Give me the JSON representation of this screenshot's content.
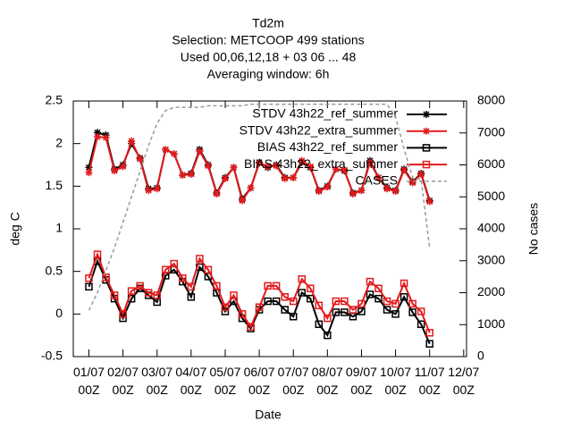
{
  "chart_data": {
    "type": "line",
    "title": [
      "Td2m",
      "Selection: METCOOP    499 stations",
      "Used  00,06,12,18  + 03 06 ... 48",
      "Averaging window:  6h"
    ],
    "xlabel": "Date",
    "ylabel": "deg C",
    "y2label": "No cases",
    "x": [
      0,
      6,
      12,
      18,
      24,
      30,
      36,
      42,
      48,
      54,
      60,
      66,
      72,
      78,
      84,
      90,
      96,
      102,
      108,
      114,
      120,
      126,
      132,
      138,
      144,
      150,
      156,
      162,
      168,
      174,
      180,
      186,
      192,
      198,
      204,
      210,
      216,
      222,
      228,
      234,
      240
    ],
    "xlim": [
      -11,
      266
    ],
    "xticks": [
      {
        "value": 0,
        "label": "01/07 00Z"
      },
      {
        "value": 24,
        "label": "02/07 00Z"
      },
      {
        "value": 48,
        "label": "03/07 00Z"
      },
      {
        "value": 72,
        "label": "04/07 00Z"
      },
      {
        "value": 96,
        "label": "05/07 00Z"
      },
      {
        "value": 120,
        "label": "06/07 00Z"
      },
      {
        "value": 144,
        "label": "07/07 00Z"
      },
      {
        "value": 168,
        "label": "08/07 00Z"
      },
      {
        "value": 192,
        "label": "09/07 00Z"
      },
      {
        "value": 216,
        "label": "10/07 00Z"
      },
      {
        "value": 240,
        "label": "11/07 00Z"
      },
      {
        "value": 264,
        "label": "12/07 00Z"
      }
    ],
    "ylim": [
      -0.5,
      2.5
    ],
    "yticks": [
      -0.5,
      0,
      0.5,
      1,
      1.5,
      2,
      2.5
    ],
    "y2lim": [
      0,
      8000
    ],
    "y2ticks": [
      0,
      1000,
      2000,
      3000,
      4000,
      5000,
      6000,
      7000,
      8000
    ],
    "legend": "upper right",
    "series": [
      {
        "name": "STDV 43h22_ref_summer",
        "color": "#000000",
        "marker": "star",
        "values": [
          1.72,
          2.13,
          2.1,
          1.7,
          1.75,
          2.0,
          1.83,
          1.47,
          1.48,
          1.93,
          1.88,
          1.63,
          1.65,
          1.93,
          1.75,
          1.42,
          1.6,
          1.72,
          1.35,
          1.48,
          1.78,
          1.72,
          1.75,
          1.6,
          1.6,
          1.78,
          1.72,
          1.45,
          1.5,
          1.7,
          1.68,
          1.42,
          1.45,
          1.8,
          1.6,
          1.48,
          1.45,
          1.7,
          1.55,
          1.65,
          1.33
        ]
      },
      {
        "name": "STDV 43h22_extra_summer",
        "color": "#e31a1c",
        "marker": "star",
        "values": [
          1.66,
          2.08,
          2.07,
          1.68,
          1.73,
          2.03,
          1.82,
          1.45,
          1.47,
          1.93,
          1.88,
          1.63,
          1.64,
          1.91,
          1.74,
          1.41,
          1.59,
          1.72,
          1.33,
          1.48,
          1.77,
          1.73,
          1.74,
          1.59,
          1.6,
          1.8,
          1.73,
          1.44,
          1.49,
          1.7,
          1.69,
          1.41,
          1.45,
          1.78,
          1.6,
          1.47,
          1.44,
          1.69,
          1.54,
          1.64,
          1.32
        ]
      },
      {
        "name": "BIAS 43h22_ref_summer",
        "color": "#000000",
        "marker": "square",
        "values": [
          0.32,
          0.62,
          0.4,
          0.18,
          -0.05,
          0.18,
          0.3,
          0.22,
          0.14,
          0.45,
          0.52,
          0.38,
          0.2,
          0.55,
          0.44,
          0.25,
          0.03,
          0.15,
          -0.05,
          -0.17,
          0.05,
          0.15,
          0.15,
          0.05,
          -0.03,
          0.25,
          0.18,
          -0.12,
          -0.25,
          0.02,
          0.02,
          -0.03,
          0.03,
          0.23,
          0.18,
          0.05,
          0.0,
          0.2,
          0.02,
          -0.12,
          -0.35
        ]
      },
      {
        "name": "BIAS 43h22_extra_summer",
        "color": "#e31a1c",
        "marker": "square",
        "values": [
          0.42,
          0.7,
          0.43,
          0.22,
          0.0,
          0.27,
          0.33,
          0.25,
          0.22,
          0.52,
          0.59,
          0.42,
          0.32,
          0.65,
          0.52,
          0.33,
          0.08,
          0.22,
          0.0,
          -0.15,
          0.08,
          0.33,
          0.33,
          0.2,
          0.15,
          0.41,
          0.3,
          0.1,
          -0.05,
          0.15,
          0.15,
          0.05,
          0.12,
          0.38,
          0.3,
          0.15,
          0.12,
          0.36,
          0.12,
          0.03,
          -0.22
        ]
      },
      {
        "name": "CASES",
        "color": "#999999",
        "marker": "none",
        "dashed": true,
        "axis": "y2",
        "values": [
          1450,
          2000,
          2700,
          3400,
          4200,
          5000,
          5800,
          6600,
          7300,
          7700,
          7800,
          7800,
          7800,
          7800,
          7850,
          7850,
          7850,
          7850,
          7850,
          7900,
          7900,
          7900,
          7900,
          7900,
          7900,
          7900,
          7900,
          7900,
          7900,
          7900,
          7900,
          7900,
          7900,
          7900,
          7900,
          7900,
          7500,
          6500,
          5600,
          5550,
          3400
        ]
      }
    ]
  }
}
